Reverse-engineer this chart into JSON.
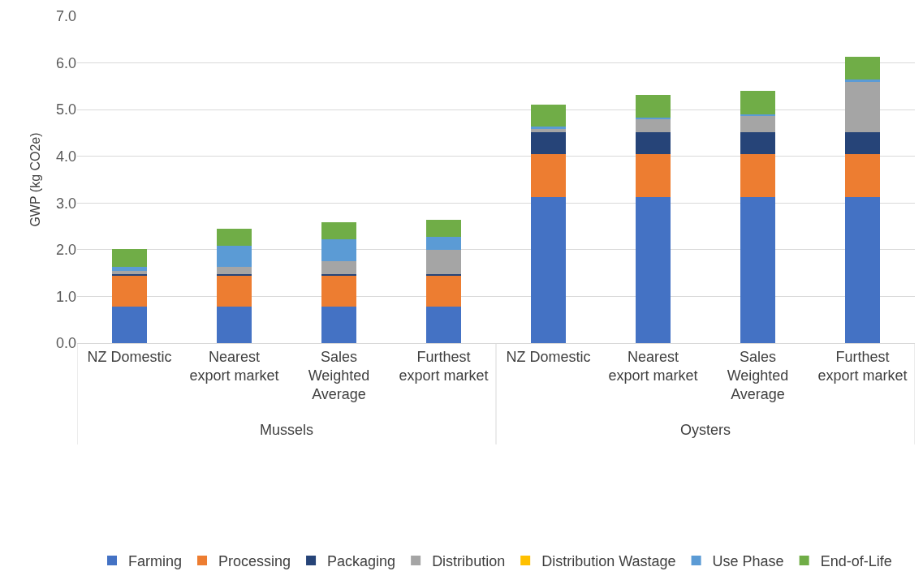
{
  "chart_data": {
    "type": "bar",
    "stacked": true,
    "ylabel": "GWP (kg CO2e)",
    "categories": [
      "NZ Domestic",
      "Nearest export market",
      "Sales Weighted Average",
      "Furthest export market",
      "NZ Domestic",
      "Nearest export market",
      "Sales Weighted Average",
      "Furthest export market"
    ],
    "series": [
      {
        "name": "Farming",
        "color": "#4472c4",
        "values": [
          0.78,
          0.78,
          0.78,
          0.78,
          3.12,
          3.12,
          3.12,
          3.12
        ]
      },
      {
        "name": "Processing",
        "color": "#ed7d31",
        "values": [
          0.67,
          0.67,
          0.67,
          0.67,
          0.93,
          0.93,
          0.93,
          0.93
        ]
      },
      {
        "name": "Packaging",
        "color": "#264478",
        "values": [
          0.03,
          0.03,
          0.03,
          0.03,
          0.46,
          0.46,
          0.46,
          0.46
        ]
      },
      {
        "name": "Distribution",
        "color": "#a5a5a5",
        "values": [
          0.07,
          0.16,
          0.28,
          0.51,
          0.09,
          0.28,
          0.36,
          1.09
        ]
      },
      {
        "name": "Distribution Wastage",
        "color": "#ffc000",
        "values": [
          0,
          0,
          0,
          0,
          0,
          0,
          0,
          0
        ]
      },
      {
        "name": "Use Phase",
        "color": "#5b9bd5",
        "values": [
          0.09,
          0.45,
          0.46,
          0.28,
          0.03,
          0.04,
          0.03,
          0.04
        ]
      },
      {
        "name": "End-of-Life",
        "color": "#70ad47",
        "values": [
          0.37,
          0.36,
          0.37,
          0.37,
          0.48,
          0.48,
          0.51,
          0.49
        ]
      }
    ],
    "annotations": [
      "Mussels",
      "Oysters"
    ],
    "ylim": [
      0,
      7
    ],
    "yticks": [
      {
        "value": 0,
        "label": "0.0"
      },
      {
        "value": 1,
        "label": "1.0"
      },
      {
        "value": 2,
        "label": "2.0"
      },
      {
        "value": 3,
        "label": "3.0"
      },
      {
        "value": 4,
        "label": "4.0"
      },
      {
        "value": 5,
        "label": "5.0"
      },
      {
        "value": 6,
        "label": "6.0"
      },
      {
        "value": 7,
        "label": "7.0"
      }
    ],
    "grid": "y",
    "legend": "bottom"
  }
}
